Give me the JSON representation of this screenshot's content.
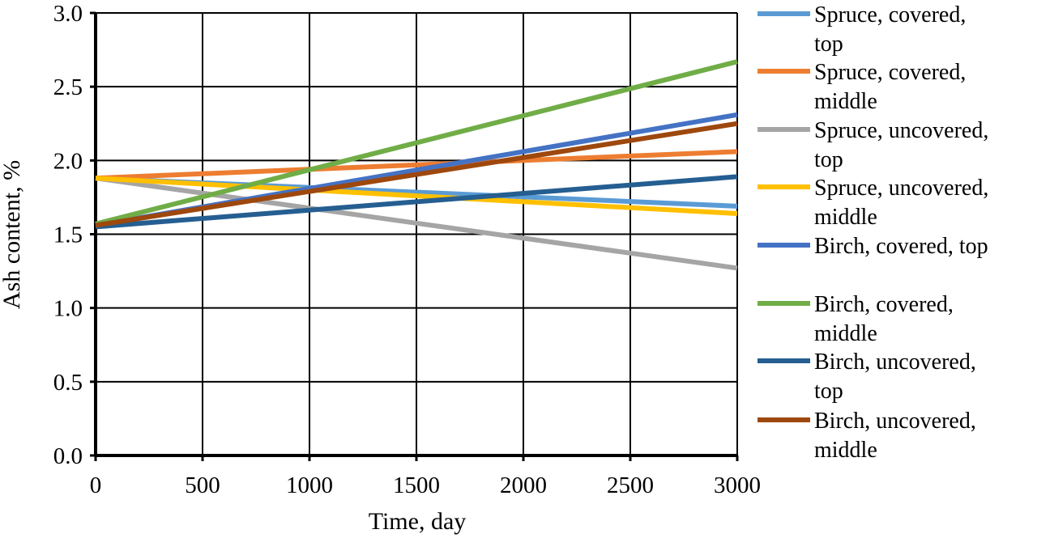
{
  "chart_data": {
    "type": "line",
    "title": "",
    "xlabel": "Time, day",
    "ylabel": "Ash content, %",
    "xlim": [
      0,
      3000
    ],
    "ylim": [
      0.0,
      3.0
    ],
    "x_ticks": [
      "0",
      "500",
      "1000",
      "1500",
      "2000",
      "2500",
      "3000"
    ],
    "y_ticks": [
      "0.0",
      "0.5",
      "1.0",
      "1.5",
      "2.0",
      "2.5",
      "3.0"
    ],
    "grid": true,
    "legend_position": "right",
    "x": [
      0,
      3000
    ],
    "series": [
      {
        "name": "Spruce, covered, top",
        "label_lines": [
          "Spruce, covered,",
          "top"
        ],
        "color": "#5B9BD5",
        "values": [
          1.88,
          1.69
        ]
      },
      {
        "name": "Spruce, covered, middle",
        "label_lines": [
          "Spruce, covered,",
          "middle"
        ],
        "color": "#ED7D31",
        "values": [
          1.88,
          2.06
        ]
      },
      {
        "name": "Spruce, uncovered, top",
        "label_lines": [
          "Spruce, uncovered,",
          "top"
        ],
        "color": "#A5A5A5",
        "values": [
          1.88,
          1.27
        ]
      },
      {
        "name": "Spruce, uncovered, middle",
        "label_lines": [
          "Spruce, uncovered,",
          "middle"
        ],
        "color": "#FFC000",
        "values": [
          1.88,
          1.64
        ]
      },
      {
        "name": "Birch, covered, top",
        "label_lines": [
          "Birch, covered, top"
        ],
        "color": "#4472C4",
        "values": [
          1.56,
          2.31
        ]
      },
      {
        "name": "Birch, covered, middle",
        "label_lines": [
          "Birch, covered,",
          "middle"
        ],
        "color": "#70AD47",
        "values": [
          1.57,
          2.67
        ]
      },
      {
        "name": "Birch, uncovered, top",
        "label_lines": [
          "Birch, uncovered,",
          "top"
        ],
        "color": "#255E91",
        "values": [
          1.55,
          1.89
        ]
      },
      {
        "name": "Birch, uncovered, middle",
        "label_lines": [
          "Birch, uncovered,",
          "middle"
        ],
        "color": "#9E480E",
        "values": [
          1.56,
          2.25
        ]
      }
    ]
  }
}
